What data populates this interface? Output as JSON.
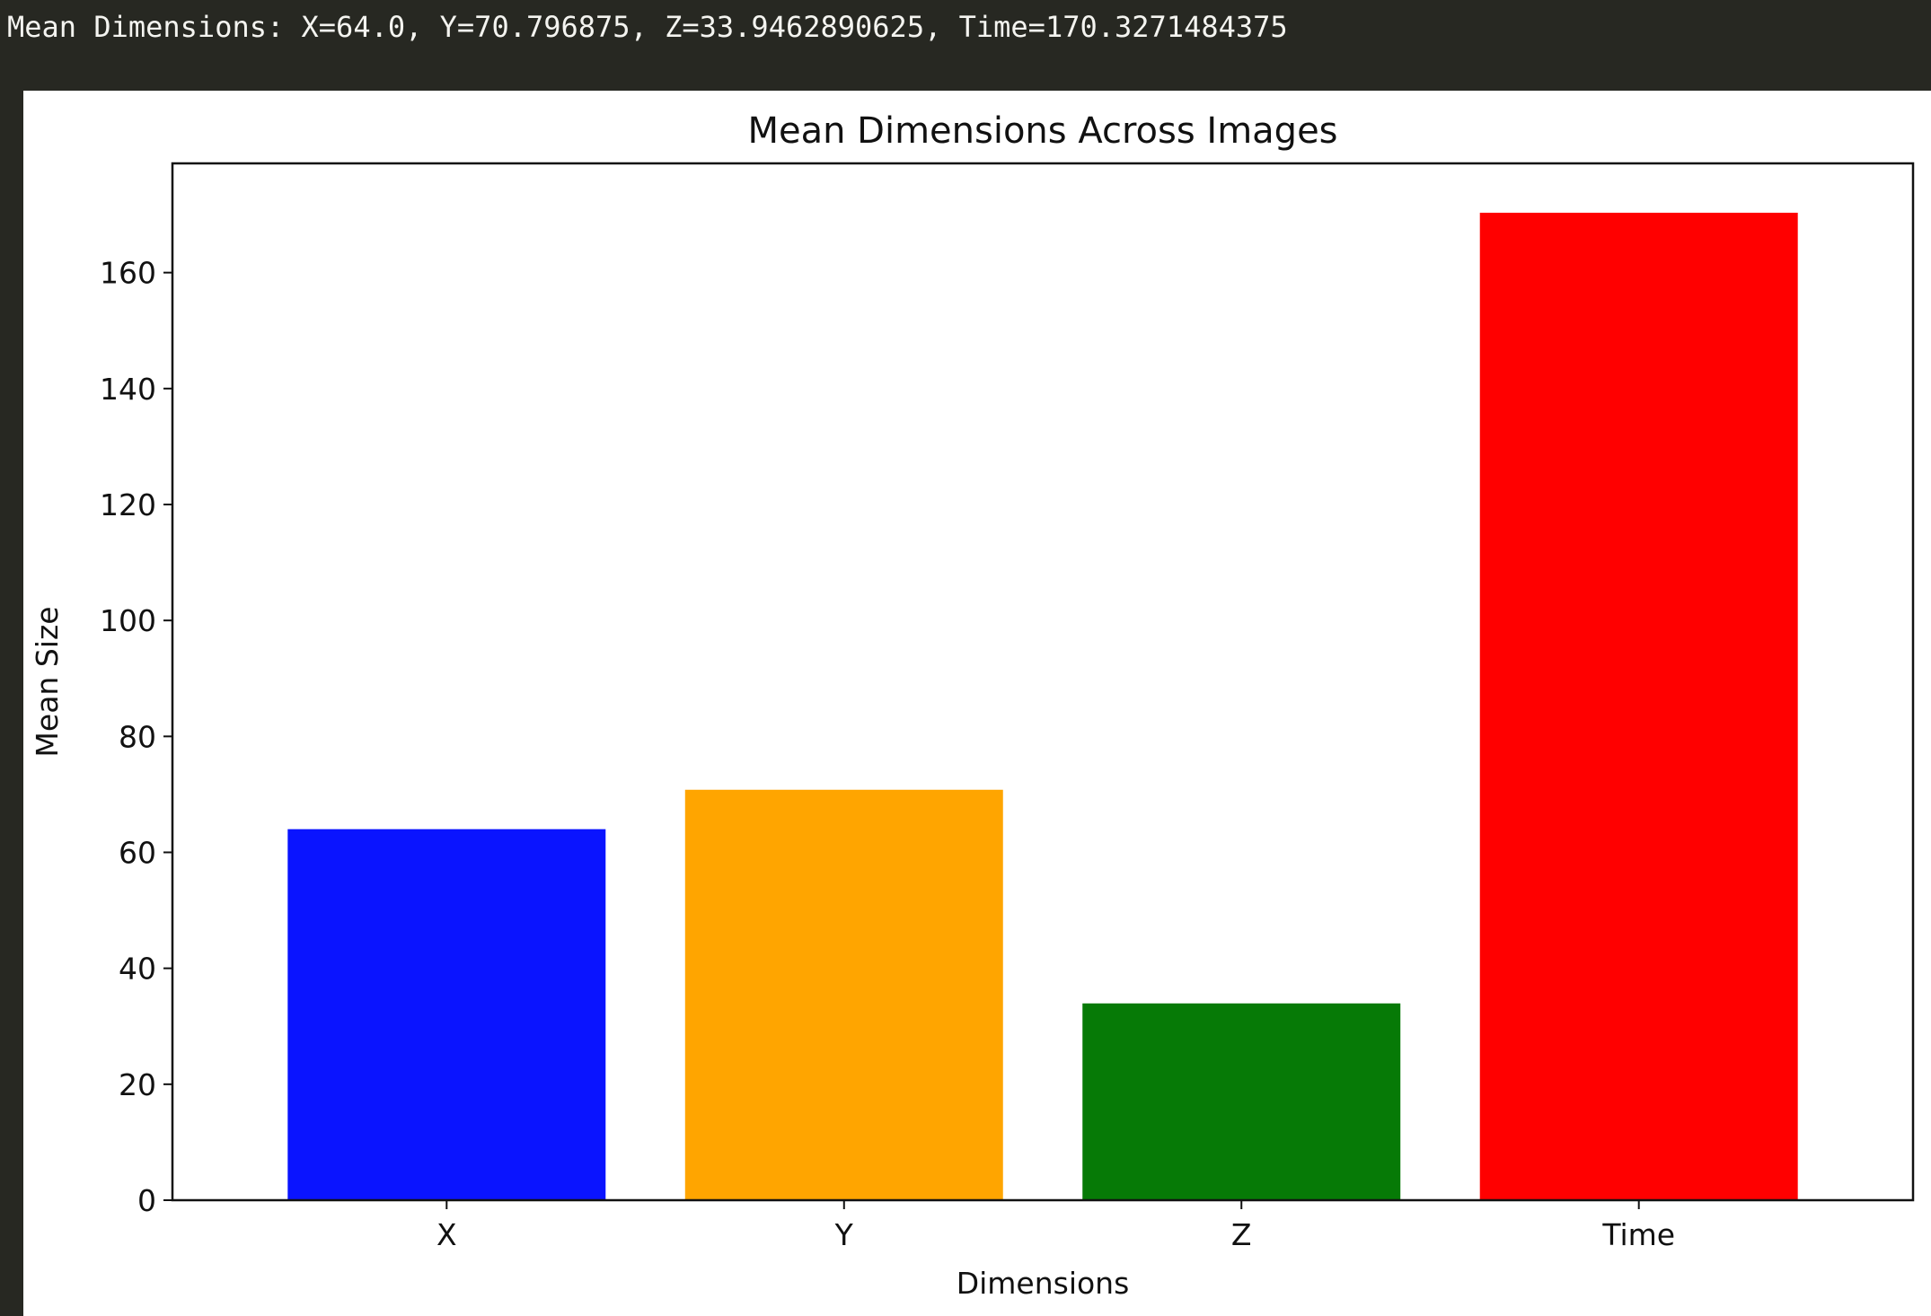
{
  "output": {
    "text": "Mean Dimensions: X=64.0, Y=70.796875, Z=33.9462890625, Time=170.3271484375"
  },
  "colors": {
    "terminal_bg": "#272822",
    "terminal_text": "#f4f4f0",
    "plot_bg": "#ffffff"
  },
  "chart_data": {
    "type": "bar",
    "title": "Mean Dimensions Across Images",
    "xlabel": "Dimensions",
    "ylabel": "Mean Size",
    "categories": [
      "X",
      "Y",
      "Z",
      "Time"
    ],
    "values": [
      64.0,
      70.796875,
      33.9462890625,
      170.3271484375
    ],
    "colors": [
      "#0a14ff",
      "#ffa500",
      "#067a06",
      "#ff0000"
    ],
    "ylim": [
      0,
      178.84
    ],
    "yticks": [
      0,
      20,
      40,
      60,
      80,
      100,
      120,
      140,
      160
    ],
    "grid": false,
    "legend": "none"
  }
}
